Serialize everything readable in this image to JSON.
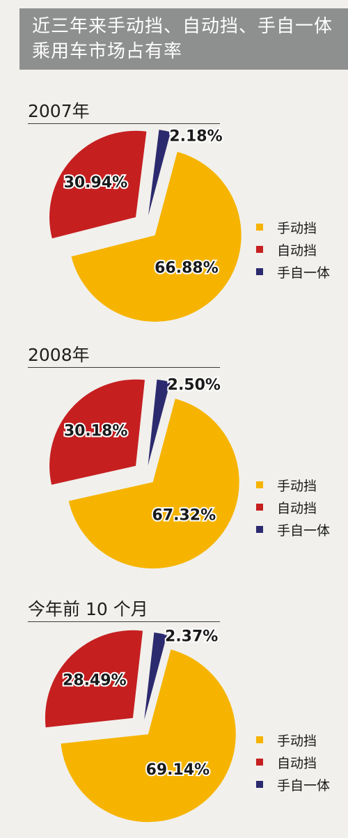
{
  "header": {
    "title_line1": "近三年来手动挡、自动挡、手自一体",
    "title_line2": "乘用车市场占有率"
  },
  "legend_labels": [
    "手动挡",
    "自动挡",
    "手自一体"
  ],
  "colors": {
    "manual": "#f6b400",
    "auto": "#c61f20",
    "tiptronic": "#2c2a6e"
  },
  "chart_data": [
    {
      "type": "pie",
      "title": "2007年",
      "categories": [
        "手动挡",
        "自动挡",
        "手自一体"
      ],
      "values": [
        66.88,
        30.94,
        2.18
      ],
      "labels": [
        "66.88%",
        "30.94%",
        "2.18%"
      ],
      "legend": [
        "手动挡",
        "自动挡",
        "手自一体"
      ]
    },
    {
      "type": "pie",
      "title": "2008年",
      "categories": [
        "手动挡",
        "自动挡",
        "手自一体"
      ],
      "values": [
        67.32,
        30.18,
        2.5
      ],
      "labels": [
        "67.32%",
        "30.18%",
        "2.50%"
      ],
      "legend": [
        "手动挡",
        "自动挡",
        "手自一体"
      ]
    },
    {
      "type": "pie",
      "title": "今年前 10 个月",
      "categories": [
        "手动挡",
        "自动挡",
        "手自一体"
      ],
      "values": [
        69.14,
        28.49,
        2.37
      ],
      "labels": [
        "69.14%",
        "28.49%",
        "2.37%"
      ],
      "legend": [
        "手动挡",
        "自动挡",
        "手自一体"
      ]
    }
  ]
}
